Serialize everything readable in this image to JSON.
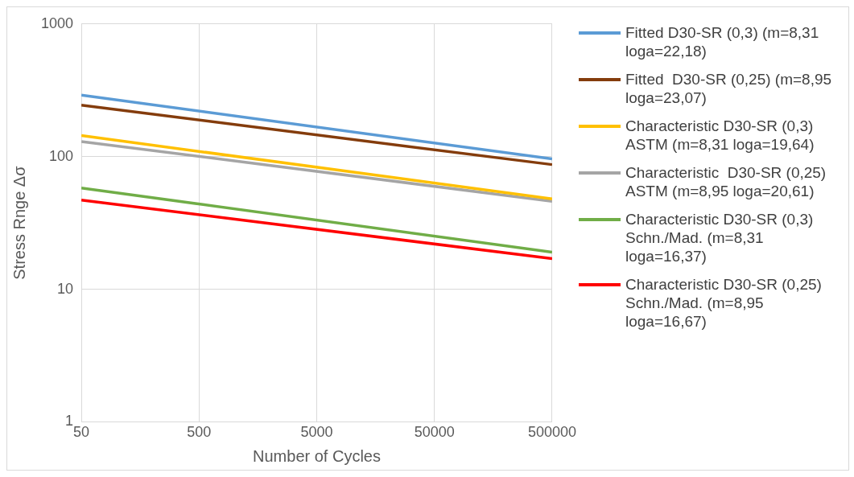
{
  "chart_data": {
    "type": "line",
    "xlabel": "Number of Cycles",
    "ylabel": "Stress Rnge Δσ",
    "x": [
      50,
      500000
    ],
    "xlim": [
      50,
      500000
    ],
    "xticks": [
      50,
      500,
      5000,
      50000,
      500000
    ],
    "ylim": [
      1,
      1000
    ],
    "yticks": [
      1,
      10,
      100,
      1000
    ],
    "log": "xy",
    "grid": true,
    "legend": "right",
    "marker": "none",
    "line_style": "solid",
    "series": [
      {
        "name": "Fitted D30-SR (0,3) (m=8,31 loga=22,18)",
        "color": "#5b9bd5",
        "values": [
          291,
          96
        ]
      },
      {
        "name": "Fitted  D30-SR (0,25) (m=8,95 loga=23,07)",
        "color": "#843c0c",
        "values": [
          244,
          87
        ]
      },
      {
        "name": "Characteristic D30-SR (0,3) ASTM (m=8,31 loga=19,64)",
        "color": "#ffc000",
        "values": [
          144,
          48
        ]
      },
      {
        "name": "Characteristic  D30-SR (0,25) ASTM (m=8,95 loga=20,61)",
        "color": "#a5a5a5",
        "values": [
          130,
          46
        ]
      },
      {
        "name": "Characteristic D30-SR (0,3) Schn./Mad. (m=8,31 loga=16,37)",
        "color": "#70ad47",
        "values": [
          58,
          19
        ]
      },
      {
        "name": "Characteristic D30-SR (0,25) Schn./Mad. (m=8,95 loga=16,67)",
        "color": "#ff0000",
        "values": [
          47,
          17
        ]
      }
    ]
  }
}
